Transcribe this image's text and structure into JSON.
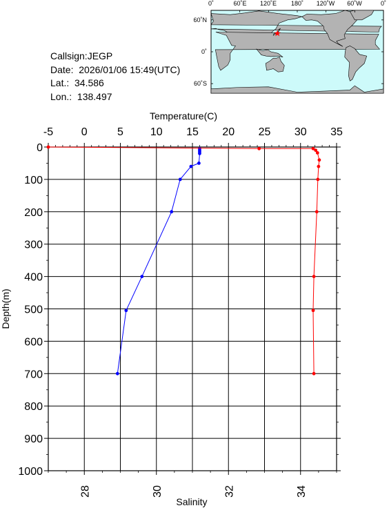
{
  "station": {
    "callsign": "Callsign:JEGP",
    "date": "Date:  2026/01/06 15:49(UTC)",
    "lat": "Lat.:  34.586",
    "lon": "Lon.:  138.497"
  },
  "map": {
    "top_labels": [
      "0˚",
      "60˚E",
      "120˚E",
      "180˚",
      "120˚W",
      "60˚W",
      "0˚"
    ],
    "lat_labels": [
      "60˚N",
      "0˚",
      "60˚S"
    ],
    "ocean_color": "#cdfafa",
    "land_color": "#b3b3b3",
    "marker_color": "#ff0000",
    "marker": {
      "lon": 138.497,
      "lat": 34.586
    }
  },
  "chart_data": {
    "type": "line",
    "title": "",
    "ylabel": "Depth(m)",
    "ylim": [
      0,
      1000
    ],
    "y_ticks": [
      "0",
      "100",
      "200",
      "300",
      "400",
      "500",
      "600",
      "700",
      "800",
      "900",
      "1000"
    ],
    "top_axis": {
      "label": "Temperature(C)",
      "lim": [
        -5,
        35
      ],
      "ticks": [
        "-5",
        "0",
        "5",
        "10",
        "15",
        "20",
        "25",
        "30",
        "35"
      ]
    },
    "bottom_axis": {
      "label": "Salinity",
      "lim": [
        27,
        35
      ],
      "ticks": [
        "28",
        "30",
        "32",
        "34"
      ]
    },
    "series": [
      {
        "axis": "temperature",
        "color": "#0000ff",
        "points": [
          [
            16.0,
            5
          ],
          [
            16.0,
            10
          ],
          [
            16.0,
            15
          ],
          [
            16.0,
            20
          ],
          [
            15.9,
            50
          ],
          [
            14.8,
            60
          ],
          [
            13.3,
            100
          ],
          [
            12.1,
            200
          ],
          [
            8.0,
            400
          ],
          [
            5.8,
            505
          ],
          [
            4.6,
            700
          ]
        ]
      },
      {
        "axis": "salinity",
        "color": "#ff0000",
        "points": [
          [
            27.0,
            0
          ],
          [
            32.85,
            5
          ],
          [
            34.35,
            5
          ],
          [
            34.42,
            10
          ],
          [
            34.47,
            18
          ],
          [
            34.52,
            40
          ],
          [
            34.5,
            60
          ],
          [
            34.48,
            100
          ],
          [
            34.45,
            200
          ],
          [
            34.37,
            400
          ],
          [
            34.35,
            505
          ],
          [
            34.37,
            700
          ]
        ]
      }
    ],
    "grid": true,
    "legend": "none"
  }
}
